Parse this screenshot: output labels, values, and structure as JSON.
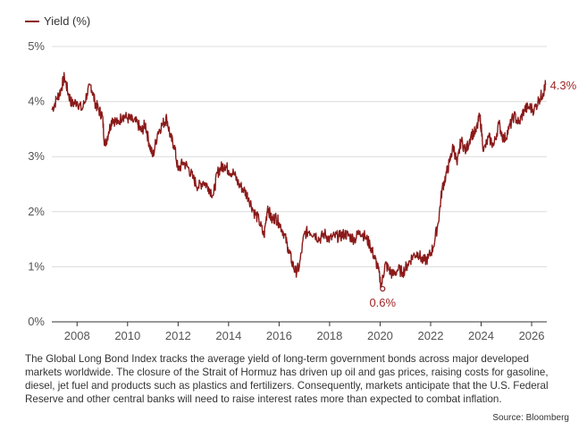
{
  "chart_data": {
    "type": "line",
    "legend": "Yield (%)",
    "legend_position": "top-left",
    "y_ticks": [
      "0%",
      "1%",
      "2%",
      "3%",
      "4%",
      "5%"
    ],
    "ylim": [
      0,
      5
    ],
    "x_ticks": [
      "2008",
      "2010",
      "2012",
      "2014",
      "2016",
      "2018",
      "2020",
      "2022",
      "2024",
      "2026"
    ],
    "xlim": [
      2007.0,
      2026.6
    ],
    "grid": "horizontal",
    "color": "#8b1a1a",
    "series": [
      {
        "name": "Yield (%)",
        "x": [
          2007.0,
          2007.2,
          2007.35,
          2007.5,
          2007.65,
          2007.8,
          2008.0,
          2008.2,
          2008.4,
          2008.55,
          2008.7,
          2008.85,
          2009.0,
          2009.1,
          2009.25,
          2009.4,
          2009.6,
          2009.8,
          2010.0,
          2010.2,
          2010.4,
          2010.55,
          2010.7,
          2010.85,
          2011.0,
          2011.2,
          2011.4,
          2011.55,
          2011.7,
          2011.85,
          2012.0,
          2012.2,
          2012.4,
          2012.6,
          2012.8,
          2013.0,
          2013.2,
          2013.4,
          2013.55,
          2013.7,
          2013.85,
          2014.0,
          2014.2,
          2014.4,
          2014.6,
          2014.8,
          2015.0,
          2015.2,
          2015.4,
          2015.55,
          2015.7,
          2015.85,
          2016.0,
          2016.2,
          2016.35,
          2016.5,
          2016.65,
          2016.8,
          2017.0,
          2017.2,
          2017.4,
          2017.6,
          2017.8,
          2018.0,
          2018.2,
          2018.4,
          2018.6,
          2018.8,
          2019.0,
          2019.2,
          2019.4,
          2019.6,
          2019.75,
          2019.9,
          2020.05,
          2020.2,
          2020.35,
          2020.5,
          2020.7,
          2020.9,
          2021.1,
          2021.3,
          2021.5,
          2021.7,
          2021.9,
          2022.1,
          2022.3,
          2022.45,
          2022.6,
          2022.75,
          2022.9,
          2023.05,
          2023.2,
          2023.4,
          2023.6,
          2023.8,
          2023.95,
          2024.1,
          2024.3,
          2024.5,
          2024.7,
          2024.9,
          2025.1,
          2025.3,
          2025.5,
          2025.7,
          2025.9,
          2026.1,
          2026.3,
          2026.45,
          2026.55
        ],
        "values": [
          3.85,
          4.05,
          4.2,
          4.45,
          4.15,
          3.95,
          4.0,
          3.85,
          4.15,
          4.3,
          4.0,
          3.85,
          3.75,
          3.2,
          3.45,
          3.7,
          3.6,
          3.75,
          3.7,
          3.65,
          3.6,
          3.45,
          3.6,
          3.25,
          3.0,
          3.45,
          3.6,
          3.7,
          3.35,
          3.2,
          2.75,
          2.9,
          2.8,
          2.6,
          2.45,
          2.55,
          2.45,
          2.3,
          2.7,
          2.8,
          2.85,
          2.75,
          2.7,
          2.5,
          2.4,
          2.25,
          2.0,
          1.85,
          1.55,
          2.1,
          1.85,
          1.9,
          1.8,
          1.6,
          1.35,
          1.1,
          0.9,
          1.0,
          1.6,
          1.65,
          1.6,
          1.5,
          1.6,
          1.5,
          1.55,
          1.55,
          1.6,
          1.55,
          1.5,
          1.65,
          1.55,
          1.4,
          1.2,
          1.0,
          0.65,
          1.05,
          0.95,
          0.85,
          0.95,
          0.9,
          1.05,
          1.2,
          1.25,
          1.1,
          1.15,
          1.35,
          1.8,
          2.4,
          2.65,
          2.9,
          3.2,
          2.85,
          3.3,
          3.1,
          3.4,
          3.45,
          3.75,
          3.1,
          3.35,
          3.2,
          3.6,
          3.3,
          3.5,
          3.75,
          3.6,
          3.85,
          3.9,
          3.85,
          4.05,
          4.15,
          4.3
        ]
      }
    ],
    "annotations": [
      {
        "label": "4.3%",
        "x": 2026.55,
        "y": 4.3
      },
      {
        "label": "0.6%",
        "x": 2020.1,
        "y": 0.6
      }
    ]
  },
  "caption": "The Global Long Bond Index tracks the average yield of long-term government bonds across major developed markets worldwide. The closure of the Strait of Hormuz has driven up oil and gas prices, raising costs for gasoline, diesel, jet fuel and products such as plastics and fertilizers. Consequently, markets anticipate that the U.S. Federal Reserve and other central banks will need to raise interest rates more than expected to combat inflation.",
  "source": "Source: Bloomberg"
}
